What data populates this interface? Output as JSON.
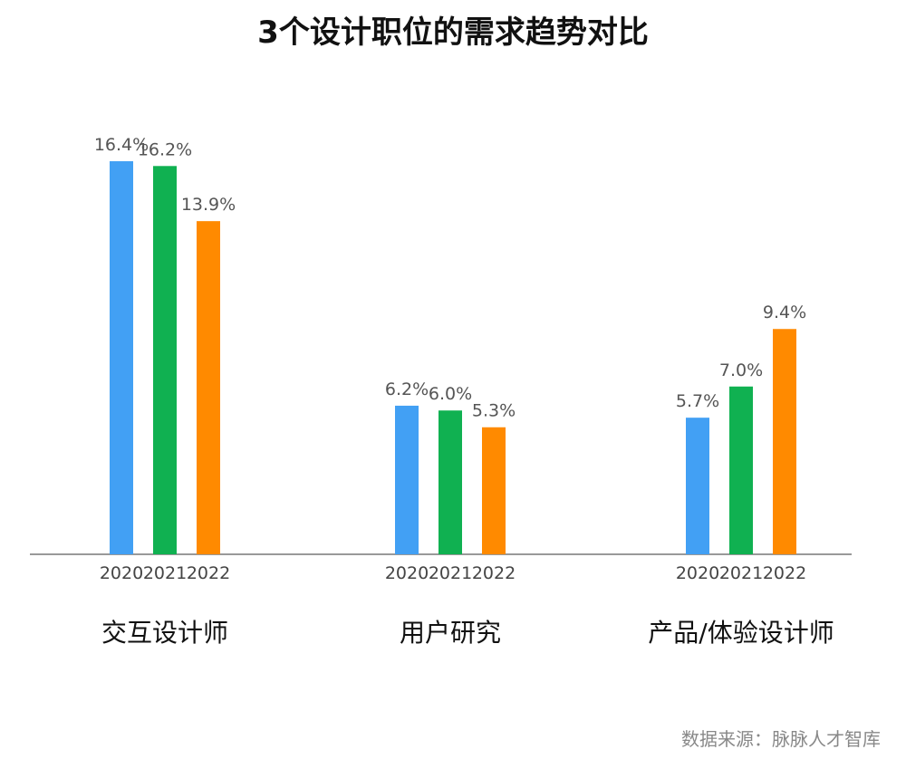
{
  "chart_data": {
    "type": "bar",
    "title": "3个设计职位的需求趋势对比",
    "categories": [
      "交互设计师",
      "用户研究",
      "产品/体验设计师"
    ],
    "series": [
      {
        "name": "2020",
        "values": [
          16.4,
          6.2,
          5.7
        ],
        "labels": [
          "16.4%",
          "6.2%",
          "5.7%"
        ],
        "color": "#42A0F4"
      },
      {
        "name": "2021",
        "values": [
          16.2,
          6.0,
          7.0
        ],
        "labels": [
          "16.2%",
          "6.0%",
          "7.0%"
        ],
        "color": "#10B151"
      },
      {
        "name": "2022",
        "values": [
          13.9,
          5.3,
          9.4
        ],
        "labels": [
          "13.9%",
          "5.3%",
          "9.4%"
        ],
        "color": "#FF8A00"
      }
    ],
    "value_suffix": "%",
    "ylim": [
      0,
      17
    ],
    "grid": false,
    "legend": "none"
  },
  "source": "数据来源：脉脉人才智库"
}
